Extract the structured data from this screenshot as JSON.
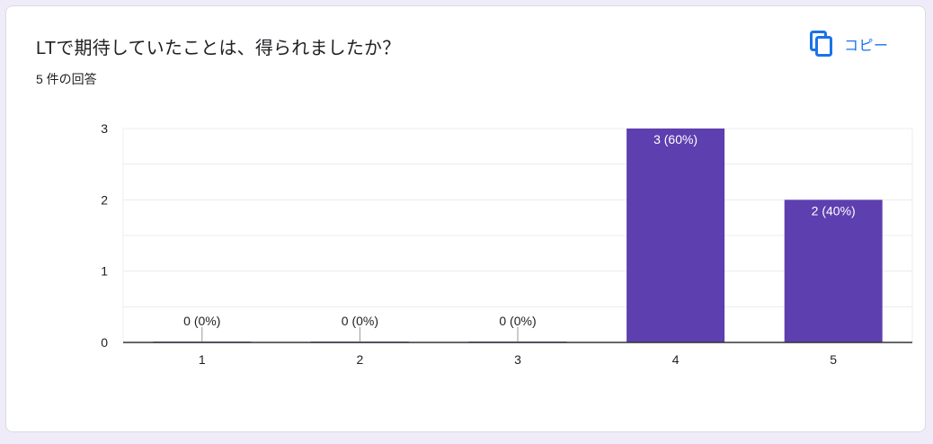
{
  "card": {
    "title": "LTで期待していたことは、得られましたか？",
    "response_count": "5 件の回答",
    "copy_label": "コピー",
    "copy_icon": "copy-icon"
  },
  "colors": {
    "bar": "#5e3fb0",
    "grid": "#ececec",
    "axis": "#333333",
    "accent": "#1a73e8"
  },
  "chart_data": {
    "type": "bar",
    "title": "",
    "xlabel": "",
    "ylabel": "",
    "categories": [
      "1",
      "2",
      "3",
      "4",
      "5"
    ],
    "values": [
      0,
      0,
      0,
      3,
      2
    ],
    "data_labels": [
      "0 (0%)",
      "0 (0%)",
      "0 (0%)",
      "3 (60%)",
      "2 (40%)"
    ],
    "y_ticks": [
      "0",
      "1",
      "2",
      "3"
    ],
    "ylim": [
      0,
      3
    ],
    "grid": true,
    "legend": "none"
  }
}
